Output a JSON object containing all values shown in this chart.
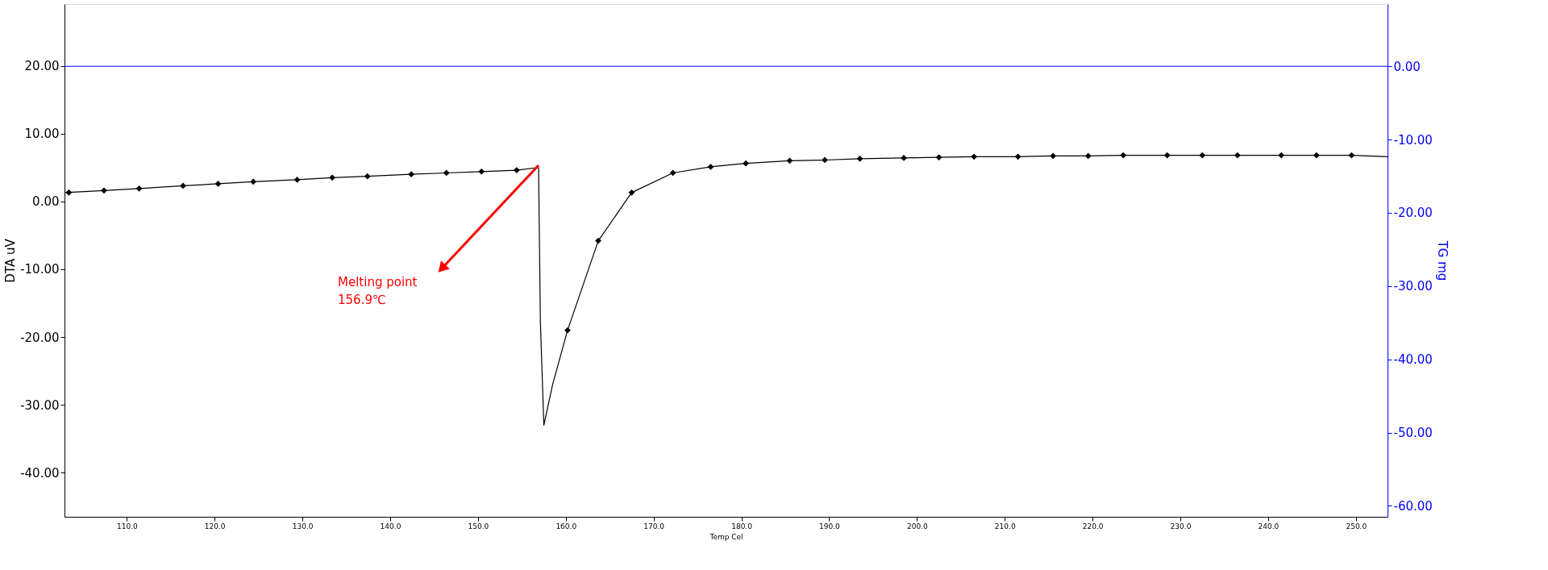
{
  "chart_data": {
    "type": "line",
    "xlabel": "Temp Cel",
    "ylabel": "DTA uV",
    "y2label": "TG mg",
    "xlim": [
      102.9,
      253.6
    ],
    "xticks": [
      {
        "value": 110,
        "label": "110.0"
      },
      {
        "value": 120,
        "label": "120.0"
      },
      {
        "value": 130,
        "label": "130.0"
      },
      {
        "value": 140,
        "label": "140.0"
      },
      {
        "value": 150,
        "label": "150.0"
      },
      {
        "value": 160,
        "label": "160.0"
      },
      {
        "value": 170,
        "label": "170.0"
      },
      {
        "value": 180,
        "label": "180.0"
      },
      {
        "value": 190,
        "label": "190.0"
      },
      {
        "value": 200,
        "label": "200.0"
      },
      {
        "value": 210,
        "label": "210.0"
      },
      {
        "value": 220,
        "label": "220.0"
      },
      {
        "value": 230,
        "label": "230.0"
      },
      {
        "value": 240,
        "label": "240.0"
      },
      {
        "value": 250,
        "label": "250.0"
      }
    ],
    "ylim": [
      -46.5,
      29.1
    ],
    "yticks": [
      {
        "value": -40,
        "label": "-40.00"
      },
      {
        "value": -30,
        "label": "-30.00"
      },
      {
        "value": -20,
        "label": "-20.00"
      },
      {
        "value": -10,
        "label": "-10.00"
      },
      {
        "value": 0,
        "label": "0.00"
      },
      {
        "value": 10,
        "label": "10.00"
      },
      {
        "value": 20,
        "label": "20.00"
      }
    ],
    "y2lim": [
      -61.5,
      8.5
    ],
    "y2ticks": [
      {
        "value": -60,
        "label": "-60.00"
      },
      {
        "value": -50,
        "label": "-50.00"
      },
      {
        "value": -40,
        "label": "-40.00"
      },
      {
        "value": -30,
        "label": "-30.00"
      },
      {
        "value": -20,
        "label": "-20.00"
      },
      {
        "value": -10,
        "label": "-10.00"
      },
      {
        "value": 0,
        "label": "0.00"
      }
    ],
    "grid": false,
    "series": [
      {
        "color": "#000000",
        "marker": "none",
        "x": [
          102.9,
          107.4,
          111.4,
          116.4,
          120.4,
          124.4,
          129.4,
          133.4,
          137.4,
          142.4,
          146.4,
          150.4,
          154.4,
          156.9,
          157.1,
          157.5,
          158.5,
          160.2,
          163.7,
          167.5,
          172.2,
          176.5,
          180.5,
          185.5,
          189.5,
          193.5,
          198.5,
          202.5,
          206.5,
          211.5,
          215.5,
          219.5,
          223.5,
          228.5,
          232.5,
          236.5,
          241.5,
          245.5,
          249.5,
          253.6
        ],
        "values": [
          1.3,
          1.6,
          1.9,
          2.3,
          2.6,
          2.9,
          3.2,
          3.5,
          3.7,
          4.0,
          4.2,
          4.4,
          4.6,
          5.0,
          -17.5,
          -33.0,
          -27.0,
          -19.0,
          -5.8,
          1.3,
          4.2,
          5.1,
          5.6,
          6.0,
          6.1,
          6.3,
          6.4,
          6.5,
          6.6,
          6.6,
          6.7,
          6.7,
          6.8,
          6.8,
          6.8,
          6.8,
          6.8,
          6.8,
          6.8,
          6.6
        ]
      },
      {
        "type": "scatter",
        "color": "#000000",
        "marker": "diamond",
        "x": [
          103.4,
          107.4,
          111.4,
          116.4,
          120.4,
          124.4,
          129.4,
          133.4,
          137.4,
          142.4,
          146.4,
          150.4,
          154.4,
          160.2,
          163.7,
          167.5,
          172.2,
          176.5,
          180.5,
          185.5,
          189.5,
          193.5,
          198.5,
          202.5,
          206.5,
          211.5,
          215.5,
          219.5,
          223.5,
          228.5,
          232.5,
          236.5,
          241.5,
          245.5,
          249.5
        ],
        "values": [
          1.3,
          1.6,
          1.9,
          2.3,
          2.6,
          2.9,
          3.2,
          3.5,
          3.7,
          4.0,
          4.2,
          4.4,
          4.6,
          -19.0,
          -5.8,
          1.3,
          4.2,
          5.1,
          5.6,
          6.0,
          6.1,
          6.3,
          6.4,
          6.5,
          6.6,
          6.6,
          6.7,
          6.7,
          6.8,
          6.8,
          6.8,
          6.8,
          6.8,
          6.8,
          6.8
        ]
      },
      {
        "axis": "y2",
        "color": "#0000ff",
        "marker": "none",
        "x": [
          102.9,
          253.6
        ],
        "values": [
          0,
          0
        ]
      }
    ],
    "annotations": [
      "Melting point\n156.9℃"
    ]
  }
}
